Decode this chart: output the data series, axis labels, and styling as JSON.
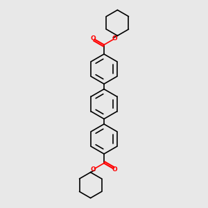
{
  "background_color": "#e8e8e8",
  "line_color": "#000000",
  "oxygen_color": "#ff0000",
  "lw": 1.2,
  "figsize": [
    3.0,
    3.0
  ],
  "dpi": 100,
  "xlim": [
    0.25,
    0.75
  ],
  "ylim": [
    0.02,
    1.02
  ]
}
